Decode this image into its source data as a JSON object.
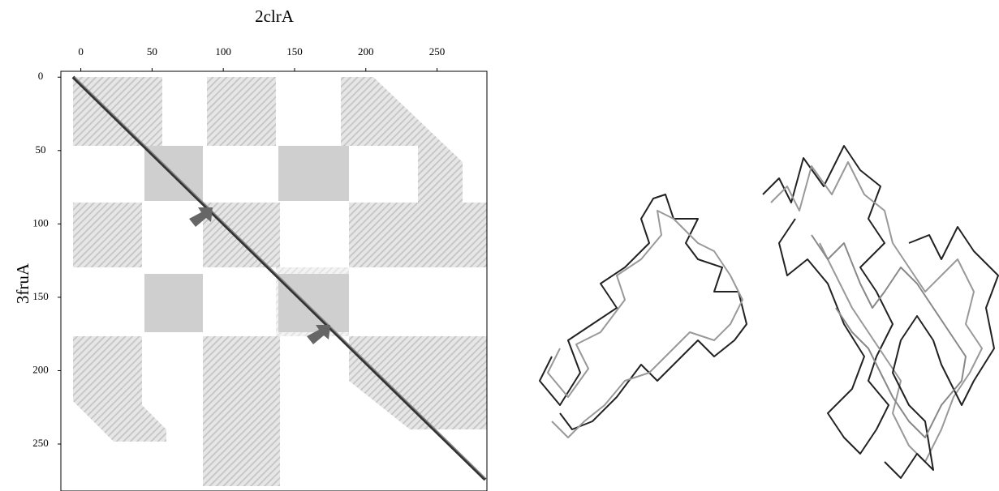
{
  "chart_data": {
    "type": "dotplot",
    "x_label": "2clrA",
    "y_label": "3fruA",
    "xlim": [
      -14,
      285
    ],
    "xticks": [
      0,
      50,
      100,
      150,
      200,
      250
    ],
    "ylim": [
      -4,
      282
    ],
    "yticks": [
      0,
      50,
      100,
      150,
      200,
      250
    ],
    "y_reversed": true
  }
}
